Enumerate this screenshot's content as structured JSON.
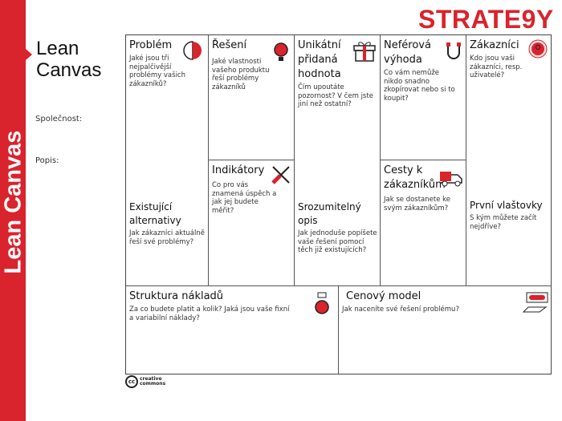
{
  "sidebar": {
    "vertical_title": "Lean Canvas",
    "color": "#d9232d"
  },
  "header": {
    "title": "Lean Canvas",
    "logo": "STRATE9Y"
  },
  "meta": {
    "company_label": "Společnost:",
    "description_label": "Popis:"
  },
  "cells": {
    "problem": {
      "title": "Problém",
      "desc": "Jaké jsou tři nejpalčivější problémy vašich zákazníků?",
      "icon": "brain-icon"
    },
    "alternatives": {
      "title": "Existující alternativy",
      "desc": "Jak zákazníci aktuálně řeší své problémy?"
    },
    "solution": {
      "title": "Řešení",
      "desc": "Jaké vlastnosti vašeho produktu řeší problémy zákazníků",
      "icon": "lightbulb-icon"
    },
    "metrics": {
      "title": "Indikátory",
      "desc": "Co pro vás znamená úspěch a jak jej budete měřit?",
      "icon": "tools-icon"
    },
    "uvp": {
      "title": "Unikátní přidaná hodnota",
      "desc": "Čím upoutáte pozornost? V čem jste jiní než ostatní?",
      "icon": "gift-icon"
    },
    "concept": {
      "title": "Srozumitelný opis",
      "desc": "Jak jednoduše popíšete vaše řešení pomocí těch již existujících?"
    },
    "unfair": {
      "title": "Neférová výhoda",
      "desc": "Co vám nemůže nikdo snadno zkopírovat nebo si to koupit?",
      "icon": "magnet-icon"
    },
    "channels": {
      "title": "Cesty k zákazníkům",
      "desc": "Jak se dostanete ke svým zákazníkům?",
      "icon": "truck-icon"
    },
    "customers": {
      "title": "Zákazníci",
      "desc": "Kdo jsou vaši zákazníci, resp. uživatelé?",
      "icon": "user-target-icon"
    },
    "early": {
      "title": "První vlaštovky",
      "desc": "S kým můžete začít nejdříve?"
    },
    "costs": {
      "title": "Struktura nákladů",
      "desc": "Za co budete platit a kolik? Jaká jsou vaše fixní a variabilní náklady?",
      "icon": "money-bag-icon"
    },
    "revenue": {
      "title": "Cenový model",
      "desc": "Jak naceníte své řešení problému?",
      "icon": "money-hand-icon"
    }
  },
  "footer": {
    "license_line1": "creative",
    "license_line2": "commons",
    "license_badge": "cc"
  }
}
